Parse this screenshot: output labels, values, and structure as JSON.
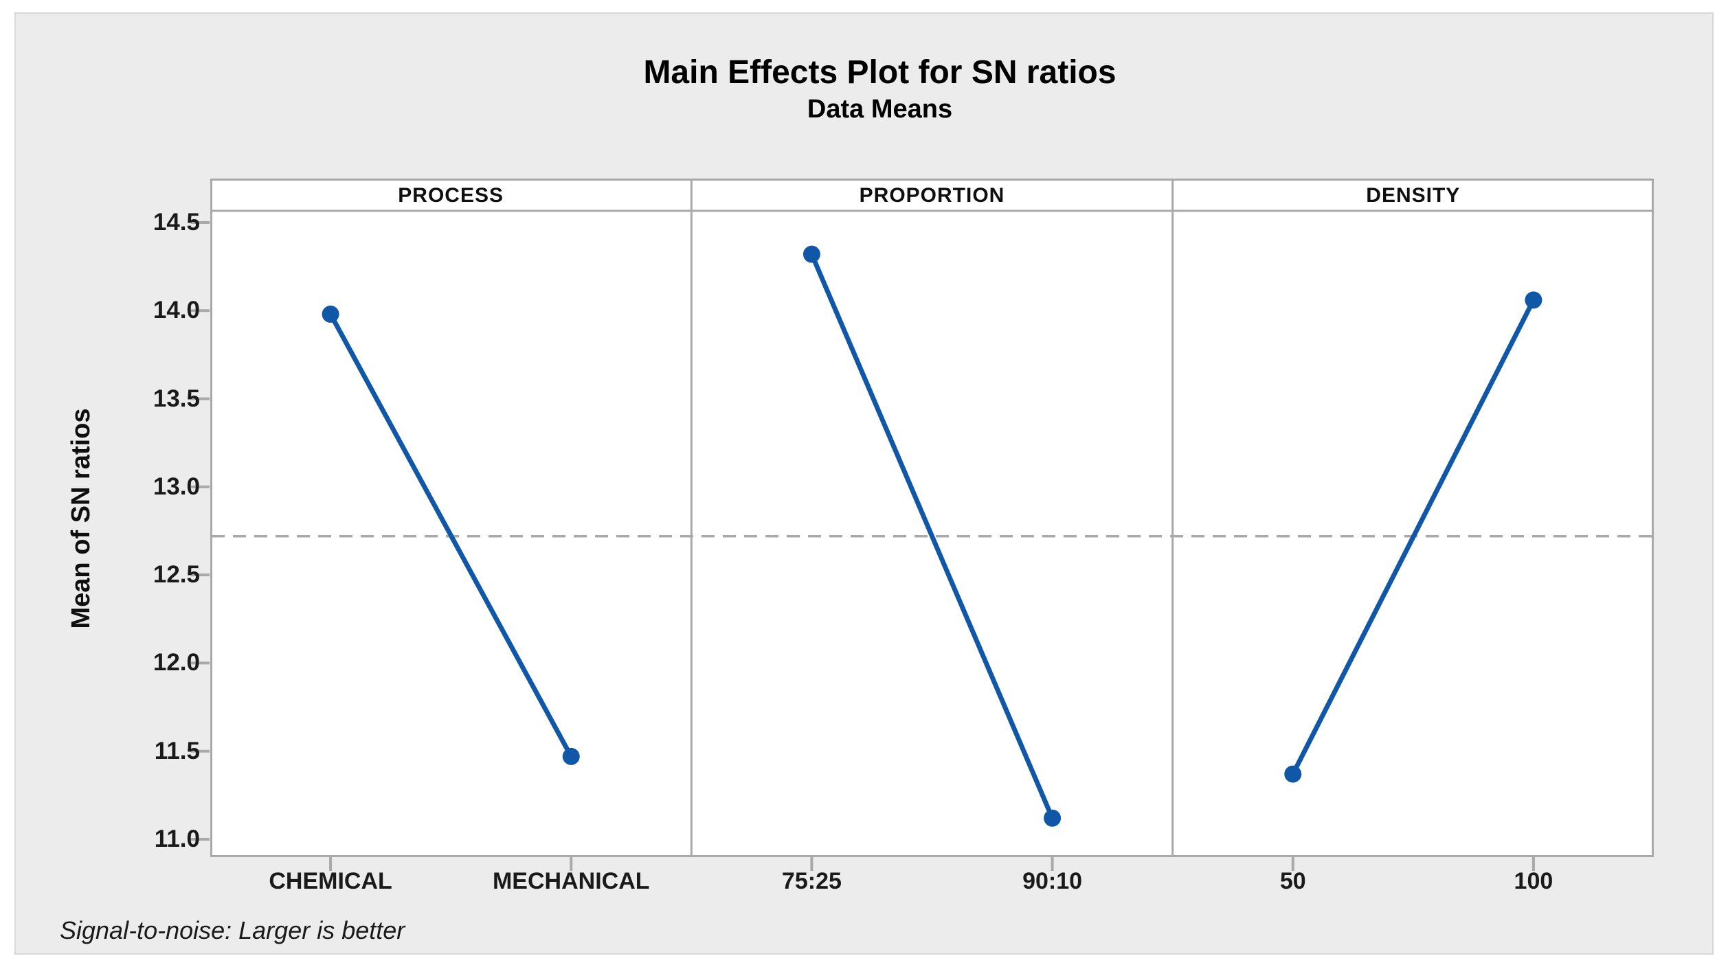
{
  "colors": {
    "series_blue": "#1057A8",
    "plot_border_gray": "#A9A9A9",
    "reference_line_gray": "#A9A9A9",
    "figure_background": "#ECECEC",
    "panel_background": "#FFFFFF"
  },
  "chart_data": {
    "type": "line",
    "title": "Main Effects Plot for SN ratios",
    "subtitle": "Data Means",
    "ylabel": "Mean of SN ratios",
    "ylim": [
      10.9,
      14.75
    ],
    "yticks": [
      "14.5",
      "14.0",
      "13.5",
      "13.0",
      "12.5",
      "12.0",
      "11.5",
      "11.0"
    ],
    "ref_line": 12.72,
    "grid": false,
    "legend": "none",
    "panels": [
      {
        "label": "PROCESS",
        "categories": [
          "CHEMICAL",
          "MECHANICAL"
        ],
        "values": [
          13.98,
          11.47
        ]
      },
      {
        "label": "PROPORTION",
        "categories": [
          "75:25",
          "90:10"
        ],
        "values": [
          14.32,
          11.12
        ]
      },
      {
        "label": "DENSITY",
        "categories": [
          "50",
          "100"
        ],
        "values": [
          11.37,
          14.06
        ]
      }
    ],
    "footnote": "Signal-to-noise: Larger is better"
  }
}
